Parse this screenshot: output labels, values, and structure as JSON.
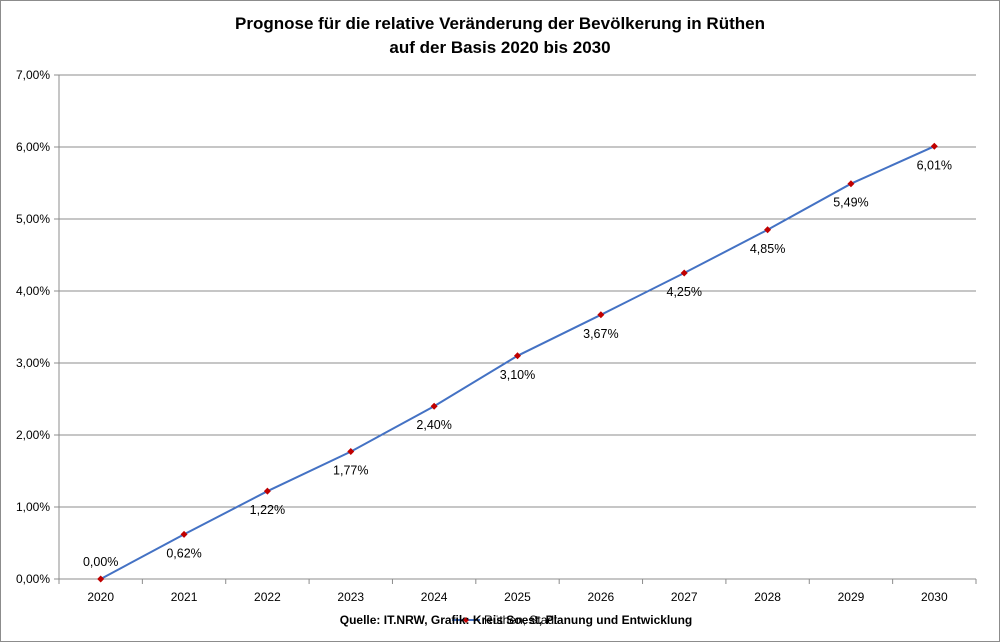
{
  "chart_data": {
    "type": "line",
    "title_line1": "Prognose für die relative Veränderung der Bevölkerung in Rüthen",
    "title_line2": "auf der Basis 2020 bis 2030",
    "x": [
      "2020",
      "2021",
      "2022",
      "2023",
      "2024",
      "2025",
      "2026",
      "2027",
      "2028",
      "2029",
      "2030"
    ],
    "series": [
      {
        "name": "Rüthen, Stadt",
        "values": [
          0.0,
          0.62,
          1.22,
          1.77,
          2.4,
          3.1,
          3.67,
          4.25,
          4.85,
          5.49,
          6.01
        ],
        "labels": [
          "0,00%",
          "0,62%",
          "1,22%",
          "1,77%",
          "2,40%",
          "3,10%",
          "3,67%",
          "4,25%",
          "4,85%",
          "5,49%",
          "6,01%"
        ],
        "line_color": "#4472c4",
        "marker_color": "#c00000"
      }
    ],
    "ylim": [
      0,
      7
    ],
    "yticks": [
      "0,00%",
      "1,00%",
      "2,00%",
      "3,00%",
      "4,00%",
      "5,00%",
      "6,00%",
      "7,00%"
    ],
    "grid": true,
    "source": "Quelle: IT.NRW, Grafik: Kreis Soest, Planung und Entwicklung",
    "legend_position": "bottom"
  }
}
